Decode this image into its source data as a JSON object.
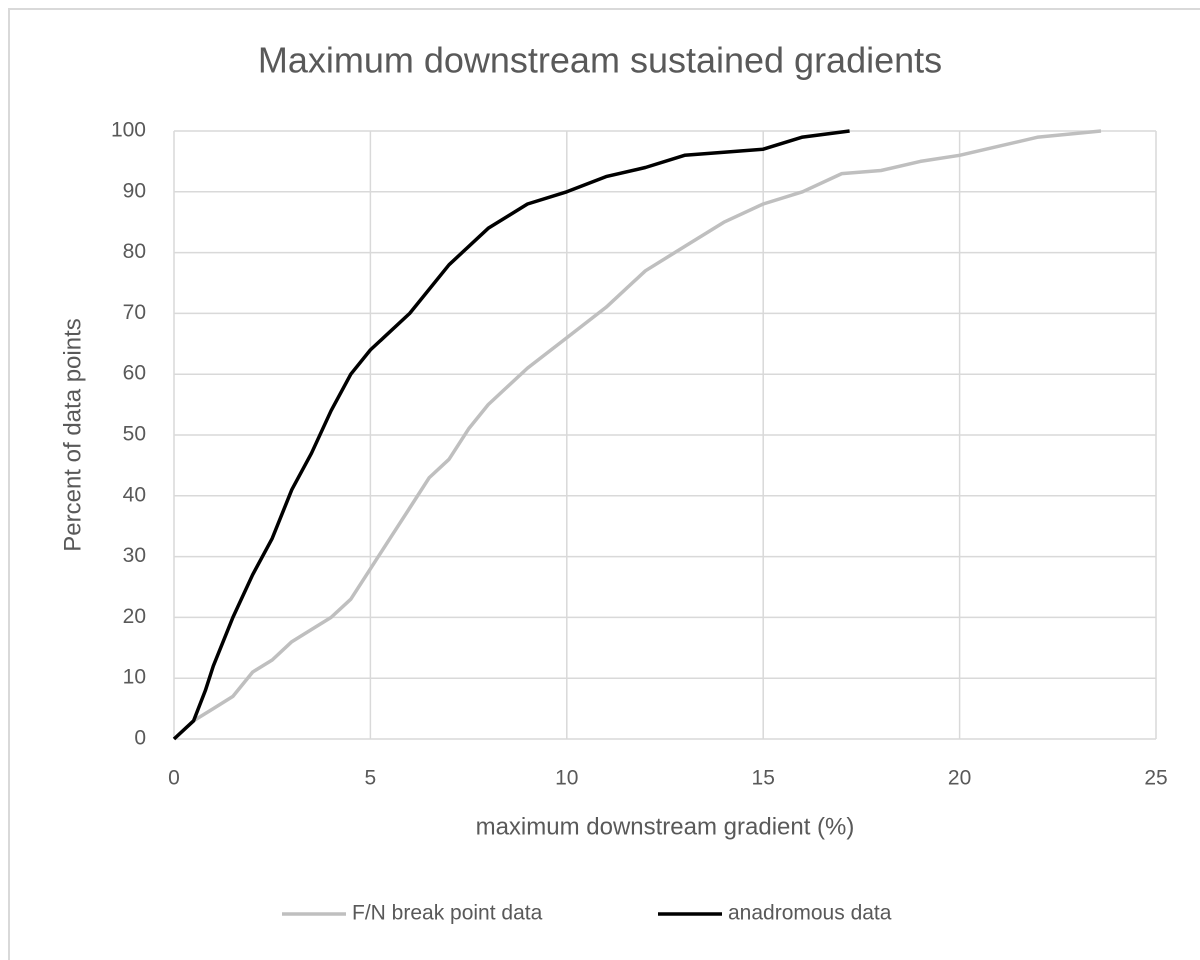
{
  "chart_data": {
    "type": "line",
    "title": "Maximum downstream sustained gradients",
    "x_label": "maximum downstream gradient (%)",
    "y_label": "Percent of data points",
    "xlim": [
      0,
      25
    ],
    "xticks": [
      0,
      5,
      10,
      15,
      20,
      25
    ],
    "ylim": [
      0,
      100
    ],
    "yticks": [
      0,
      10,
      20,
      30,
      40,
      50,
      60,
      70,
      80,
      90,
      100
    ],
    "grid": true,
    "legend": "bottom",
    "series": [
      {
        "name": "F/N break point data",
        "color": "#bfbfbf",
        "x": [
          0,
          0.5,
          1,
          1.5,
          2,
          2.5,
          3,
          4,
          4.5,
          5,
          5.5,
          6,
          6.5,
          7,
          7.5,
          8,
          9,
          10,
          11,
          12,
          13,
          14,
          15,
          16,
          17,
          18,
          19,
          20,
          21,
          22,
          23.6
        ],
        "values": [
          0,
          3,
          5,
          7,
          11,
          13,
          16,
          20,
          23,
          28,
          33,
          38,
          43,
          46,
          51,
          55,
          61,
          66,
          71,
          77,
          81,
          85,
          88,
          90,
          93,
          93.5,
          95,
          96,
          97.5,
          99,
          100
        ]
      },
      {
        "name": "anadromous data",
        "color": "#000000",
        "x": [
          0,
          0.5,
          0.8,
          1,
          1.5,
          2,
          2.5,
          3,
          3.5,
          4,
          4.5,
          5,
          6,
          7,
          8,
          9,
          10,
          11,
          12,
          13,
          14,
          15,
          16,
          17.2
        ],
        "values": [
          0,
          3,
          8,
          12,
          20,
          27,
          33,
          41,
          47,
          54,
          60,
          64,
          70,
          78,
          84,
          88,
          90,
          92.5,
          94,
          96,
          96.5,
          97,
          99,
          100
        ]
      }
    ]
  }
}
